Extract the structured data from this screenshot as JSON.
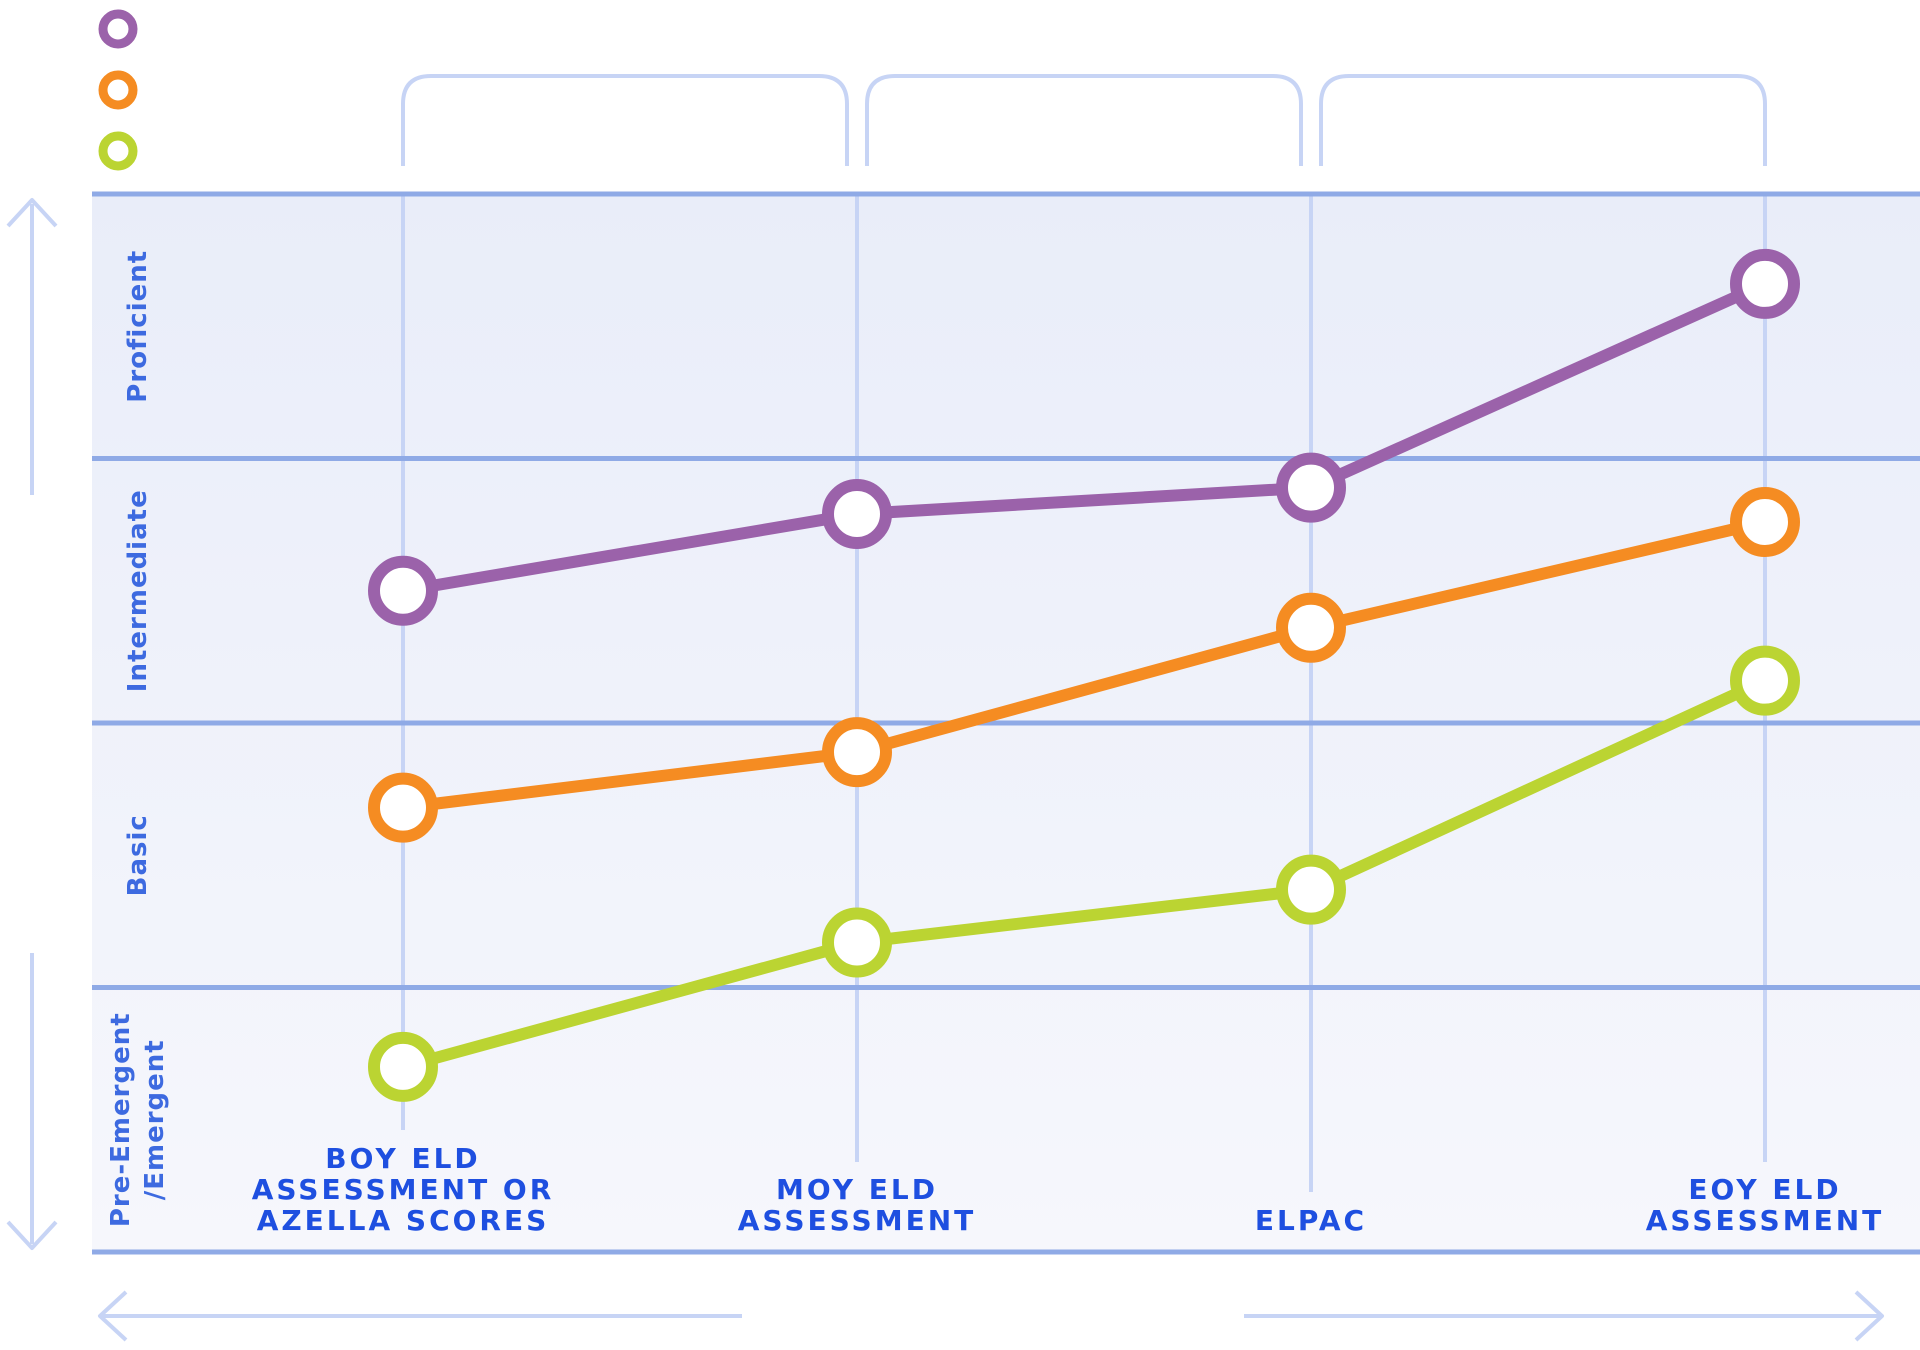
{
  "chart_data": {
    "type": "line",
    "title": "",
    "xlabel": "",
    "ylabel": "",
    "categories": [
      [
        "BOY ELD",
        "ASSESSMENT OR",
        "AZELLA SCORES"
      ],
      [
        "MOY ELD",
        "ASSESSMENT"
      ],
      [
        "ELPAC"
      ],
      [
        "EOY ELD",
        "ASSESSMENT"
      ]
    ],
    "y_bands": [
      [
        "Pre-Emergent",
        "/Emergent"
      ],
      [
        "Basic"
      ],
      [
        "Intermediate"
      ],
      [
        "Proficient"
      ]
    ],
    "ylim": [
      0,
      4
    ],
    "grid": true,
    "legend": "top-left",
    "series": [
      {
        "color": "#9B62AA",
        "values": [
          2.5,
          2.79,
          2.89,
          3.66
        ]
      },
      {
        "color": "#F58C22",
        "values": [
          1.68,
          1.89,
          2.36,
          2.76
        ]
      },
      {
        "color": "#BBD432",
        "values": [
          0.7,
          1.17,
          1.37,
          2.16
        ]
      }
    ]
  },
  "colors": {
    "band_bg": "#EEF1FA",
    "band_line": "#8FAAE6",
    "grid_line": "#C7D4F5",
    "label_blue": "#1E4FE0",
    "band_text": "#3D6AE0",
    "arrow": "#C7D4F5"
  }
}
